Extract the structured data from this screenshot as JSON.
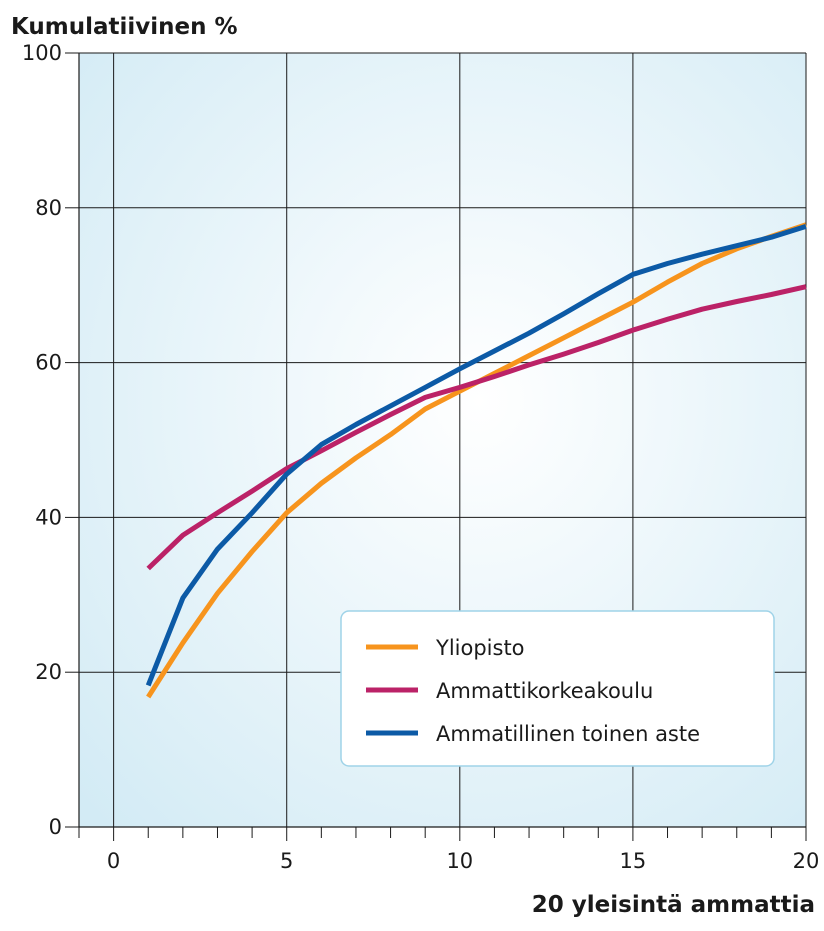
{
  "chart_data": {
    "type": "line",
    "ylabel": "Kumulatiivinen %",
    "xlabel": "20 yleisintä ammattia",
    "xlim": [
      -1,
      20
    ],
    "ylim": [
      0,
      100
    ],
    "x_ticks": [
      0,
      5,
      10,
      15,
      20
    ],
    "y_ticks": [
      0,
      20,
      40,
      60,
      80,
      100
    ],
    "grid": true,
    "legend_position": "bottom-right",
    "x": [
      1,
      2,
      3,
      4,
      5,
      6,
      7,
      8,
      9,
      10,
      11,
      12,
      13,
      14,
      15,
      16,
      17,
      18,
      19,
      20
    ],
    "series": [
      {
        "name": "Yliopisto",
        "color": "#f7941d",
        "values": [
          16.8,
          23.8,
          30.2,
          35.6,
          40.6,
          44.4,
          47.7,
          50.7,
          54.0,
          56.3,
          58.6,
          60.9,
          63.2,
          65.5,
          67.8,
          70.4,
          72.8,
          74.7,
          76.3,
          77.8
        ]
      },
      {
        "name": "Ammattikorkeakoulu",
        "color": "#bb2267",
        "values": [
          33.4,
          37.7,
          40.6,
          43.4,
          46.3,
          48.6,
          51.0,
          53.3,
          55.5,
          56.8,
          58.2,
          59.7,
          61.1,
          62.6,
          64.2,
          65.6,
          66.9,
          67.9,
          68.8,
          69.8
        ]
      },
      {
        "name": "Ammatillinen toinen aste",
        "color": "#0c5aa6",
        "values": [
          18.3,
          29.6,
          35.9,
          40.6,
          45.6,
          49.4,
          52.0,
          54.4,
          56.8,
          59.2,
          61.5,
          63.8,
          66.3,
          68.9,
          71.4,
          72.8,
          74.0,
          75.1,
          76.2,
          77.6
        ]
      }
    ]
  },
  "colors": {
    "plot_bg_center": "#ffffff",
    "plot_bg_edge": "#d3ebf5",
    "legend_border": "#9fd3e8",
    "grid": "#1a1a1a"
  }
}
